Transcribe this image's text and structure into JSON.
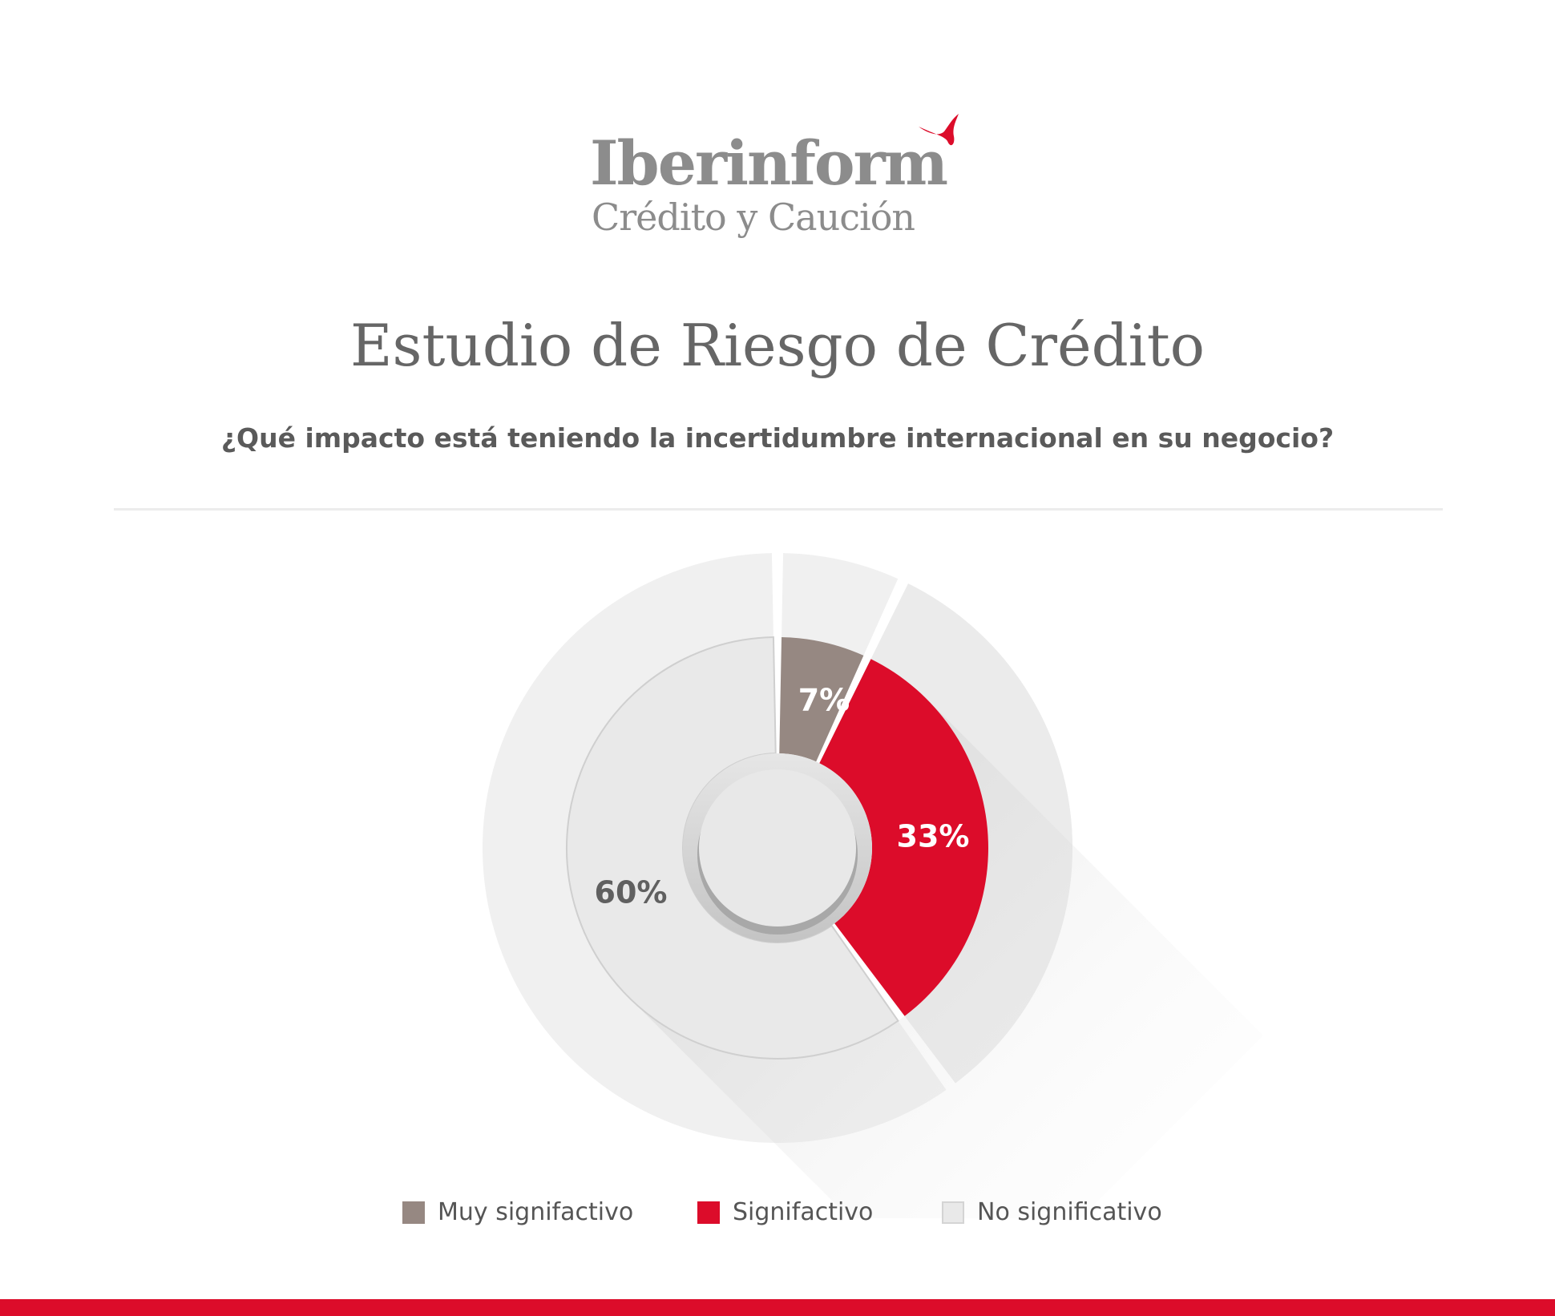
{
  "brand": {
    "name": "Iberinform",
    "tagline": "Crédito y Caución",
    "accent_color": "#dc0c2a",
    "text_color": "#8c8c8c"
  },
  "header": {
    "title": "Estudio de Riesgo de Crédito",
    "question": "¿Qué impacto está teniendo la incertidumbre internacional en su negocio?"
  },
  "chart_data": {
    "type": "pie",
    "title": "",
    "categories": [
      "Muy signifactivo",
      "Signifactivo",
      "No significativo"
    ],
    "values": [
      7,
      33,
      60
    ],
    "labels": [
      "7%",
      "33%",
      "60%"
    ],
    "unit": "%",
    "colors": [
      "#968882",
      "#dc0c2a",
      "#e9e9e9"
    ],
    "label_colors": [
      "#ffffff",
      "#ffffff",
      "#606060"
    ],
    "legend_position": "bottom"
  },
  "footer": {
    "bar_color": "#dc0c2a"
  }
}
